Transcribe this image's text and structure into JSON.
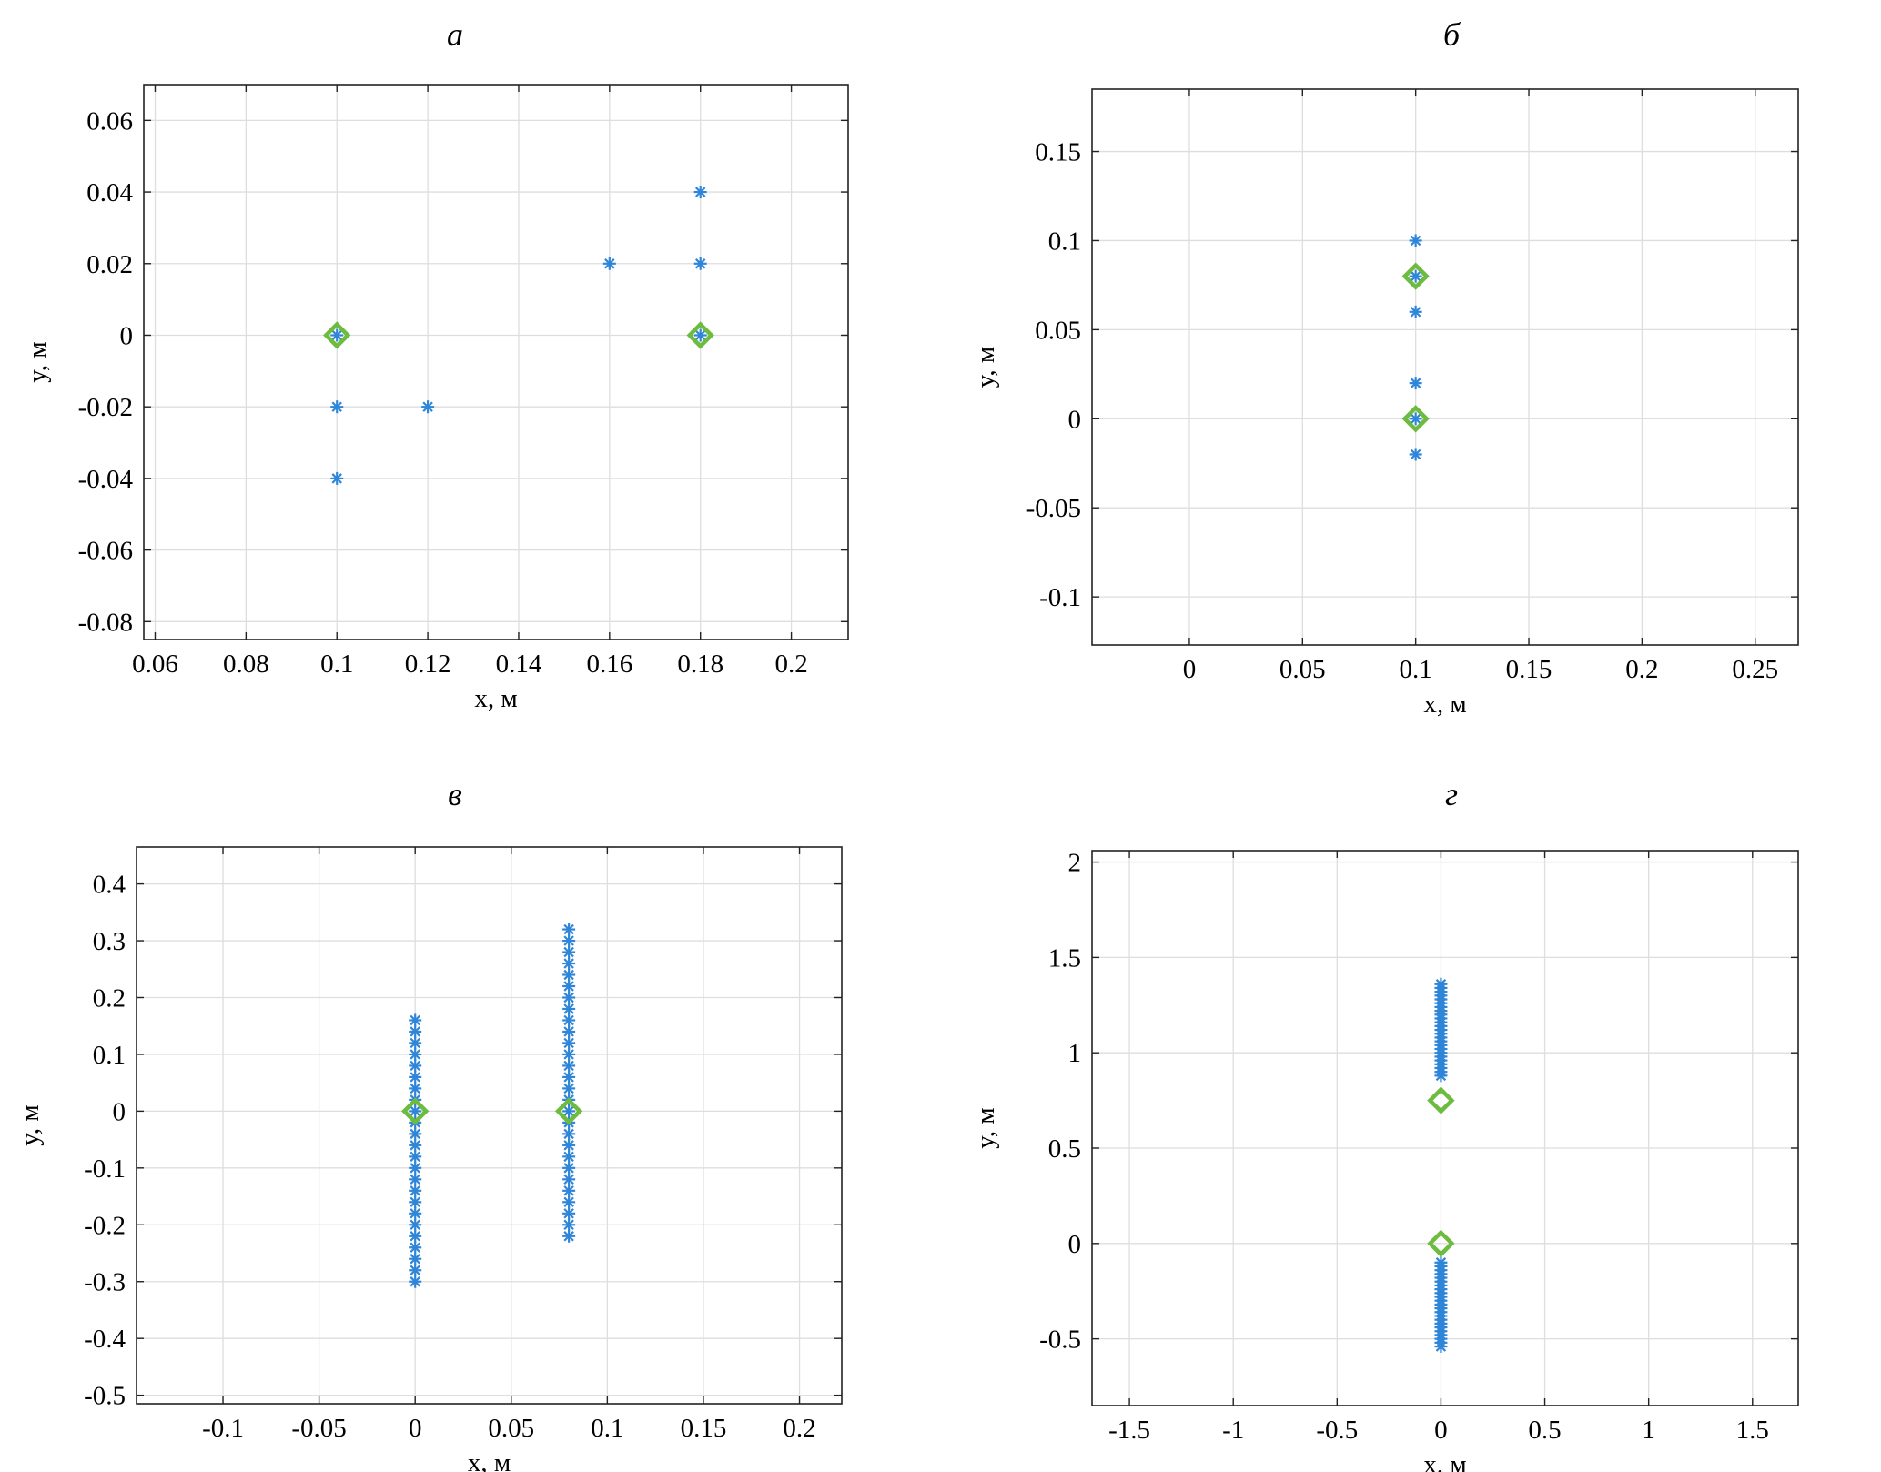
{
  "colors": {
    "stars": "#2f86d8",
    "diamonds": "#6dbb3f",
    "grid": "#dedede",
    "frame": "#222222"
  },
  "chart_data": [
    {
      "id": "a",
      "type": "scatter",
      "title": "а",
      "xlabel": "x, м",
      "ylabel": "y, м",
      "grid": true,
      "xlim": [
        0.0575,
        0.2125
      ],
      "ylim": [
        -0.085,
        0.07
      ],
      "xticks": [
        0.06,
        0.08,
        0.1,
        0.12,
        0.14,
        0.16,
        0.18,
        0.2
      ],
      "xtick_labels": [
        "0.06",
        "0.08",
        "0.1",
        "0.12",
        "0.14",
        "0.16",
        "0.18",
        "0.2"
      ],
      "yticks": [
        -0.08,
        -0.06,
        -0.04,
        -0.02,
        0,
        0.02,
        0.04,
        0.06
      ],
      "ytick_labels": [
        "-0.08",
        "-0.06",
        "-0.04",
        "-0.02",
        "0",
        "0.02",
        "0.04",
        "0.06"
      ],
      "series": [
        {
          "name": "stars",
          "marker": "asterisk",
          "points": [
            [
              0.1,
              0
            ],
            [
              0.1,
              -0.02
            ],
            [
              0.1,
              -0.04
            ],
            [
              0.12,
              -0.02
            ],
            [
              0.16,
              0.02
            ],
            [
              0.18,
              0.04
            ],
            [
              0.18,
              0.02
            ],
            [
              0.18,
              0
            ]
          ]
        },
        {
          "name": "diamonds",
          "marker": "diamond",
          "points": [
            [
              0.1,
              0
            ],
            [
              0.18,
              0
            ]
          ]
        }
      ]
    },
    {
      "id": "b",
      "type": "scatter",
      "title": "б",
      "xlabel": "x, м",
      "ylabel": "y, м",
      "grid": true,
      "xlim": [
        -0.043,
        0.269
      ],
      "ylim": [
        -0.127,
        0.185
      ],
      "xticks": [
        0,
        0.05,
        0.1,
        0.15,
        0.2,
        0.25
      ],
      "xtick_labels": [
        "0",
        "0.05",
        "0.1",
        "0.15",
        "0.2",
        "0.25"
      ],
      "yticks": [
        -0.1,
        -0.05,
        0,
        0.05,
        0.1,
        0.15
      ],
      "ytick_labels": [
        "-0.1",
        "-0.05",
        "0",
        "0.05",
        "0.1",
        "0.15"
      ],
      "series": [
        {
          "name": "stars",
          "marker": "asterisk",
          "points": [
            [
              0.1,
              0.1
            ],
            [
              0.1,
              0.08
            ],
            [
              0.1,
              0.06
            ],
            [
              0.1,
              0.02
            ],
            [
              0.1,
              0
            ],
            [
              0.1,
              -0.02
            ]
          ]
        },
        {
          "name": "diamonds",
          "marker": "diamond",
          "points": [
            [
              0.1,
              0.08
            ],
            [
              0.1,
              0
            ]
          ]
        }
      ]
    },
    {
      "id": "c",
      "type": "scatter",
      "title": "в",
      "xlabel": "x, м",
      "ylabel": "y, м",
      "grid": true,
      "xlim": [
        -0.145,
        0.222
      ],
      "ylim": [
        -0.515,
        0.465
      ],
      "xticks": [
        -0.1,
        -0.05,
        0,
        0.05,
        0.1,
        0.15,
        0.2
      ],
      "xtick_labels": [
        "-0.1",
        "-0.05",
        "0",
        "0.05",
        "0.1",
        "0.15",
        "0.2"
      ],
      "yticks": [
        -0.5,
        -0.4,
        -0.3,
        -0.2,
        -0.1,
        0,
        0.1,
        0.2,
        0.3,
        0.4
      ],
      "ytick_labels": [
        "-0.5",
        "-0.4",
        "-0.3",
        "-0.2",
        "-0.1",
        "0",
        "0.1",
        "0.2",
        "0.3",
        "0.4"
      ],
      "series": [
        {
          "name": "stars",
          "marker": "asterisk",
          "columns": [
            {
              "x": 0,
              "y_from": -0.3,
              "y_to": 0.16,
              "step": 0.02
            },
            {
              "x": 0.08,
              "y_from": -0.22,
              "y_to": 0.32,
              "step": 0.02
            }
          ]
        },
        {
          "name": "diamonds",
          "marker": "diamond",
          "points": [
            [
              0,
              0
            ],
            [
              0.08,
              0
            ]
          ]
        }
      ]
    },
    {
      "id": "d",
      "type": "scatter",
      "title": "г",
      "xlabel": "x, м",
      "ylabel": "y, м",
      "grid": true,
      "xlim": [
        -1.68,
        1.72
      ],
      "ylim": [
        -0.85,
        2.06
      ],
      "xticks": [
        -1.5,
        -1,
        -0.5,
        0,
        0.5,
        1,
        1.5
      ],
      "xtick_labels": [
        "-1.5",
        "-1",
        "-0.5",
        "0",
        "0.5",
        "1",
        "1.5"
      ],
      "yticks": [
        -0.5,
        0,
        0.5,
        1,
        1.5,
        2
      ],
      "ytick_labels": [
        "-0.5",
        "0",
        "0.5",
        "1",
        "1.5",
        "2"
      ],
      "series": [
        {
          "name": "stars",
          "marker": "asterisk",
          "columns": [
            {
              "x": 0,
              "y_from": 0.88,
              "y_to": 1.36,
              "step": 0.02
            },
            {
              "x": 0,
              "y_from": -0.54,
              "y_to": -0.1,
              "step": 0.02
            }
          ]
        },
        {
          "name": "diamonds",
          "marker": "diamond",
          "points": [
            [
              0,
              0.75
            ],
            [
              0,
              0
            ]
          ]
        }
      ]
    }
  ]
}
